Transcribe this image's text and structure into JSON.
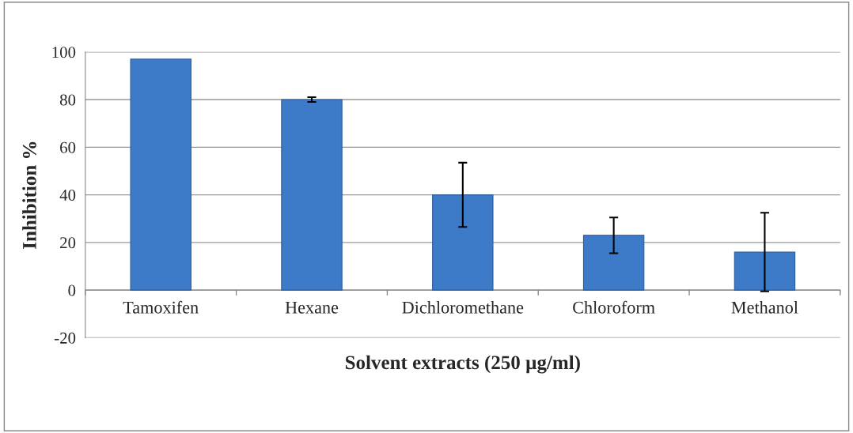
{
  "chart_data": {
    "type": "bar",
    "xlabel": "Solvent extracts (250 µg/ml)",
    "ylabel": "Inhibition %",
    "categories": [
      "Tamoxifen",
      "Hexane",
      "Dichloromethane",
      "Chloroform",
      "Methanol"
    ],
    "values": [
      97,
      80,
      40,
      23,
      16
    ],
    "errors": [
      null,
      1,
      13.5,
      7.5,
      16.5
    ],
    "color": "#3d7bc9",
    "ylim": [
      -20,
      100
    ],
    "yticks": [
      -20,
      0,
      20,
      40,
      60,
      80,
      100
    ],
    "grid": "y"
  }
}
